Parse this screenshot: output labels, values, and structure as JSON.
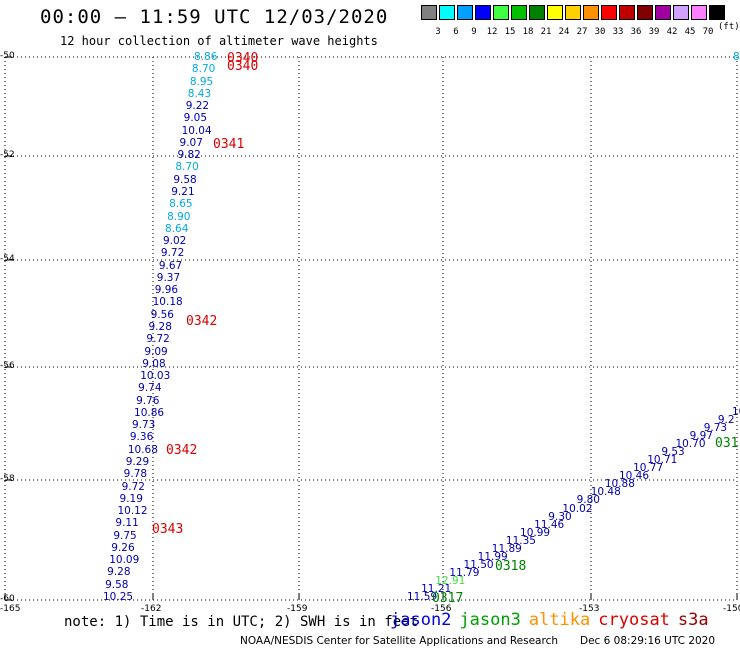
{
  "header": {
    "title": "00:00 — 11:59 UTC 12/03/2020",
    "subtitle": "12 hour collection of altimeter wave heights"
  },
  "colorbar": {
    "units": "(ft)",
    "items": [
      {
        "label": "3",
        "color": "#808080"
      },
      {
        "label": "6",
        "color": "#00ffff"
      },
      {
        "label": "9",
        "color": "#00a0ff"
      },
      {
        "label": "12",
        "color": "#0000ff"
      },
      {
        "label": "15",
        "color": "#40ff40"
      },
      {
        "label": "18",
        "color": "#00c000"
      },
      {
        "label": "21",
        "color": "#008000"
      },
      {
        "label": "24",
        "color": "#ffff00"
      },
      {
        "label": "27",
        "color": "#ffd000"
      },
      {
        "label": "30",
        "color": "#ff9000"
      },
      {
        "label": "33",
        "color": "#ff0000"
      },
      {
        "label": "36",
        "color": "#c00000"
      },
      {
        "label": "39",
        "color": "#800000"
      },
      {
        "label": "42",
        "color": "#a000a0"
      },
      {
        "label": "45",
        "color": "#d0a0ff"
      },
      {
        "label": "70",
        "color": "#ff80ff"
      },
      {
        "label": "",
        "color": "#000000"
      }
    ]
  },
  "axes": {
    "lat_ticks": [
      "-50",
      "-52",
      "-54",
      "-56",
      "-58",
      "-60"
    ],
    "lon_ticks": [
      "-165",
      "-162",
      "-159",
      "-156",
      "-153",
      "-150"
    ]
  },
  "colors": {
    "c6": "#00aadd",
    "c9": "#0000b0",
    "c15": "#40dd40",
    "green": "#008000",
    "red": "#dd0000"
  },
  "track_west": [
    {
      "v": "8.86",
      "c": "c6"
    },
    {
      "v": "8.70",
      "c": "c6"
    },
    {
      "v": "8.95",
      "c": "c6"
    },
    {
      "v": "8.43",
      "c": "c6"
    },
    {
      "v": "9.22",
      "c": "c9"
    },
    {
      "v": "9.05",
      "c": "c9"
    },
    {
      "v": "10.04",
      "c": "c9"
    },
    {
      "v": "9.07",
      "c": "c9"
    },
    {
      "v": "9.82",
      "c": "c9"
    },
    {
      "v": "8.70",
      "c": "c6"
    },
    {
      "v": "9.58",
      "c": "c9"
    },
    {
      "v": "9.21",
      "c": "c9"
    },
    {
      "v": "8.65",
      "c": "c6"
    },
    {
      "v": "8.90",
      "c": "c6"
    },
    {
      "v": "8.64",
      "c": "c6"
    },
    {
      "v": "9.02",
      "c": "c9"
    },
    {
      "v": "9.72",
      "c": "c9"
    },
    {
      "v": "9.67",
      "c": "c9"
    },
    {
      "v": "9.37",
      "c": "c9"
    },
    {
      "v": "9.96",
      "c": "c9"
    },
    {
      "v": "10.18",
      "c": "c9"
    },
    {
      "v": "9.56",
      "c": "c9"
    },
    {
      "v": "9.28",
      "c": "c9"
    },
    {
      "v": "9.72",
      "c": "c9"
    },
    {
      "v": "9.09",
      "c": "c9"
    },
    {
      "v": "9.08",
      "c": "c9"
    },
    {
      "v": "10.03",
      "c": "c9"
    },
    {
      "v": "9.74",
      "c": "c9"
    },
    {
      "v": "9.76",
      "c": "c9"
    },
    {
      "v": "10.86",
      "c": "c9"
    },
    {
      "v": "9.73",
      "c": "c9"
    },
    {
      "v": "9.36",
      "c": "c9"
    },
    {
      "v": "10.68",
      "c": "c9"
    },
    {
      "v": "9.29",
      "c": "c9"
    },
    {
      "v": "9.78",
      "c": "c9"
    },
    {
      "v": "9.72",
      "c": "c9"
    },
    {
      "v": "9.19",
      "c": "c9"
    },
    {
      "v": "10.12",
      "c": "c9"
    },
    {
      "v": "9.11",
      "c": "c9"
    },
    {
      "v": "9.75",
      "c": "c9"
    },
    {
      "v": "9.26",
      "c": "c9"
    },
    {
      "v": "10.09",
      "c": "c9"
    },
    {
      "v": "9.28",
      "c": "c9"
    },
    {
      "v": "9.58",
      "c": "c9"
    },
    {
      "v": "10.25",
      "c": "c9"
    }
  ],
  "time_west": [
    {
      "t": "0340",
      "c": "red"
    },
    {
      "t": "0340",
      "c": "red"
    },
    {
      "t": "0341",
      "c": "red"
    },
    {
      "t": "0342",
      "c": "red"
    },
    {
      "t": "0342",
      "c": "red"
    },
    {
      "t": "0343",
      "c": "red"
    }
  ],
  "track_east": [
    {
      "v": "11.59",
      "c": "c9"
    },
    {
      "v": "11.21",
      "c": "c9"
    },
    {
      "v": "12.91",
      "c": "c15"
    },
    {
      "v": "11.79",
      "c": "c9"
    },
    {
      "v": "11.50",
      "c": "c9"
    },
    {
      "v": "11.99",
      "c": "c9"
    },
    {
      "v": "11.89",
      "c": "c9"
    },
    {
      "v": "11.35",
      "c": "c9"
    },
    {
      "v": "10.99",
      "c": "c9"
    },
    {
      "v": "11.46",
      "c": "c9"
    },
    {
      "v": "9.30",
      "c": "c9"
    },
    {
      "v": "10.02",
      "c": "c9"
    },
    {
      "v": "9.80",
      "c": "c9"
    },
    {
      "v": "10.48",
      "c": "c9"
    },
    {
      "v": "10.88",
      "c": "c9"
    },
    {
      "v": "10.46",
      "c": "c9"
    },
    {
      "v": "10.77",
      "c": "c9"
    },
    {
      "v": "10.71",
      "c": "c9"
    },
    {
      "v": "9.53",
      "c": "c9"
    },
    {
      "v": "10.70",
      "c": "c9"
    },
    {
      "v": "9.97",
      "c": "c9"
    },
    {
      "v": "9.73",
      "c": "c9"
    },
    {
      "v": "9.2",
      "c": "c9"
    },
    {
      "v": "10",
      "c": "c9"
    }
  ],
  "time_east": [
    {
      "t": "0317",
      "c": "green"
    },
    {
      "t": "0318",
      "c": "green"
    },
    {
      "t": "031",
      "c": "green"
    }
  ],
  "edge_label": {
    "v": "8",
    "c": "c6"
  },
  "footer": {
    "note": "note: 1) Time is in UTC; 2) SWH is in feet",
    "sats": [
      {
        "name": "jason2",
        "color": "#0000dd"
      },
      {
        "name": "jason3",
        "color": "#00a000"
      },
      {
        "name": "altika",
        "color": "#ff9000"
      },
      {
        "name": "cryosat",
        "color": "#dd0000"
      },
      {
        "name": "s3a",
        "color": "#a00000"
      }
    ],
    "credit": "NOAA/NESDIS Center for Satellite Applications and Research",
    "timestamp": "Dec  6 08:29:16 UTC 2020"
  }
}
